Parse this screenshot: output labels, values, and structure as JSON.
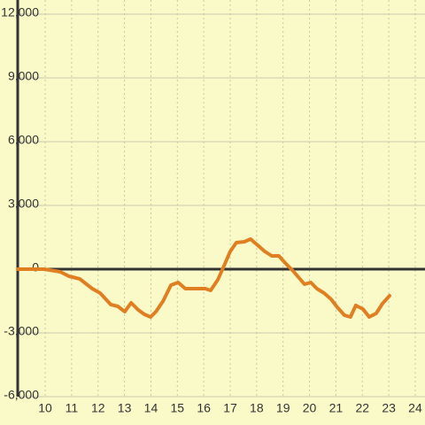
{
  "chart_data": {
    "type": "line",
    "x": [
      8.96,
      9.97,
      10.57,
      10.9,
      11.31,
      11.78,
      12.08,
      12.48,
      12.75,
      13.01,
      13.25,
      13.52,
      13.75,
      13.99,
      14.19,
      14.46,
      14.76,
      15.03,
      15.3,
      15.73,
      16.06,
      16.26,
      16.53,
      16.8,
      17.0,
      17.23,
      17.54,
      17.77,
      18.0,
      18.31,
      18.57,
      18.84,
      19.08,
      19.38,
      19.61,
      19.81,
      20.05,
      20.28,
      20.55,
      20.82,
      21.05,
      21.32,
      21.55,
      21.75,
      22.02,
      22.26,
      22.52,
      22.76,
      23.03
    ],
    "values": [
      0,
      0,
      -125,
      -333,
      -458,
      -917,
      -1125,
      -1667,
      -1750,
      -2000,
      -1583,
      -1917,
      -2125,
      -2250,
      -2000,
      -1500,
      -750,
      -625,
      -917,
      -917,
      -917,
      -1000,
      -500,
      250,
      833,
      1250,
      1292,
      1417,
      1167,
      833,
      625,
      625,
      292,
      -83,
      -417,
      -708,
      -625,
      -917,
      -1125,
      -1417,
      -1792,
      -2167,
      -2250,
      -1708,
      -1875,
      -2250,
      -2083,
      -1625,
      -1250
    ],
    "color": "#e07f22",
    "xlim": [
      8.96,
      24.37
    ],
    "xticks": [
      10,
      11,
      12,
      13,
      14,
      15,
      16,
      17,
      18,
      19,
      20,
      21,
      22,
      23,
      24
    ],
    "ylim": [
      -6000,
      12000
    ],
    "yticks": [
      {
        "value": -6000,
        "label": "-6,000"
      },
      {
        "value": -3000,
        "label": "-3,000"
      },
      0,
      {
        "value": 3000,
        "label": "3,000"
      },
      {
        "value": 6000,
        "label": "6,000"
      },
      {
        "value": 9000,
        "label": "9,000"
      },
      {
        "value": 12000,
        "label": "12,000"
      }
    ],
    "grid": true
  }
}
